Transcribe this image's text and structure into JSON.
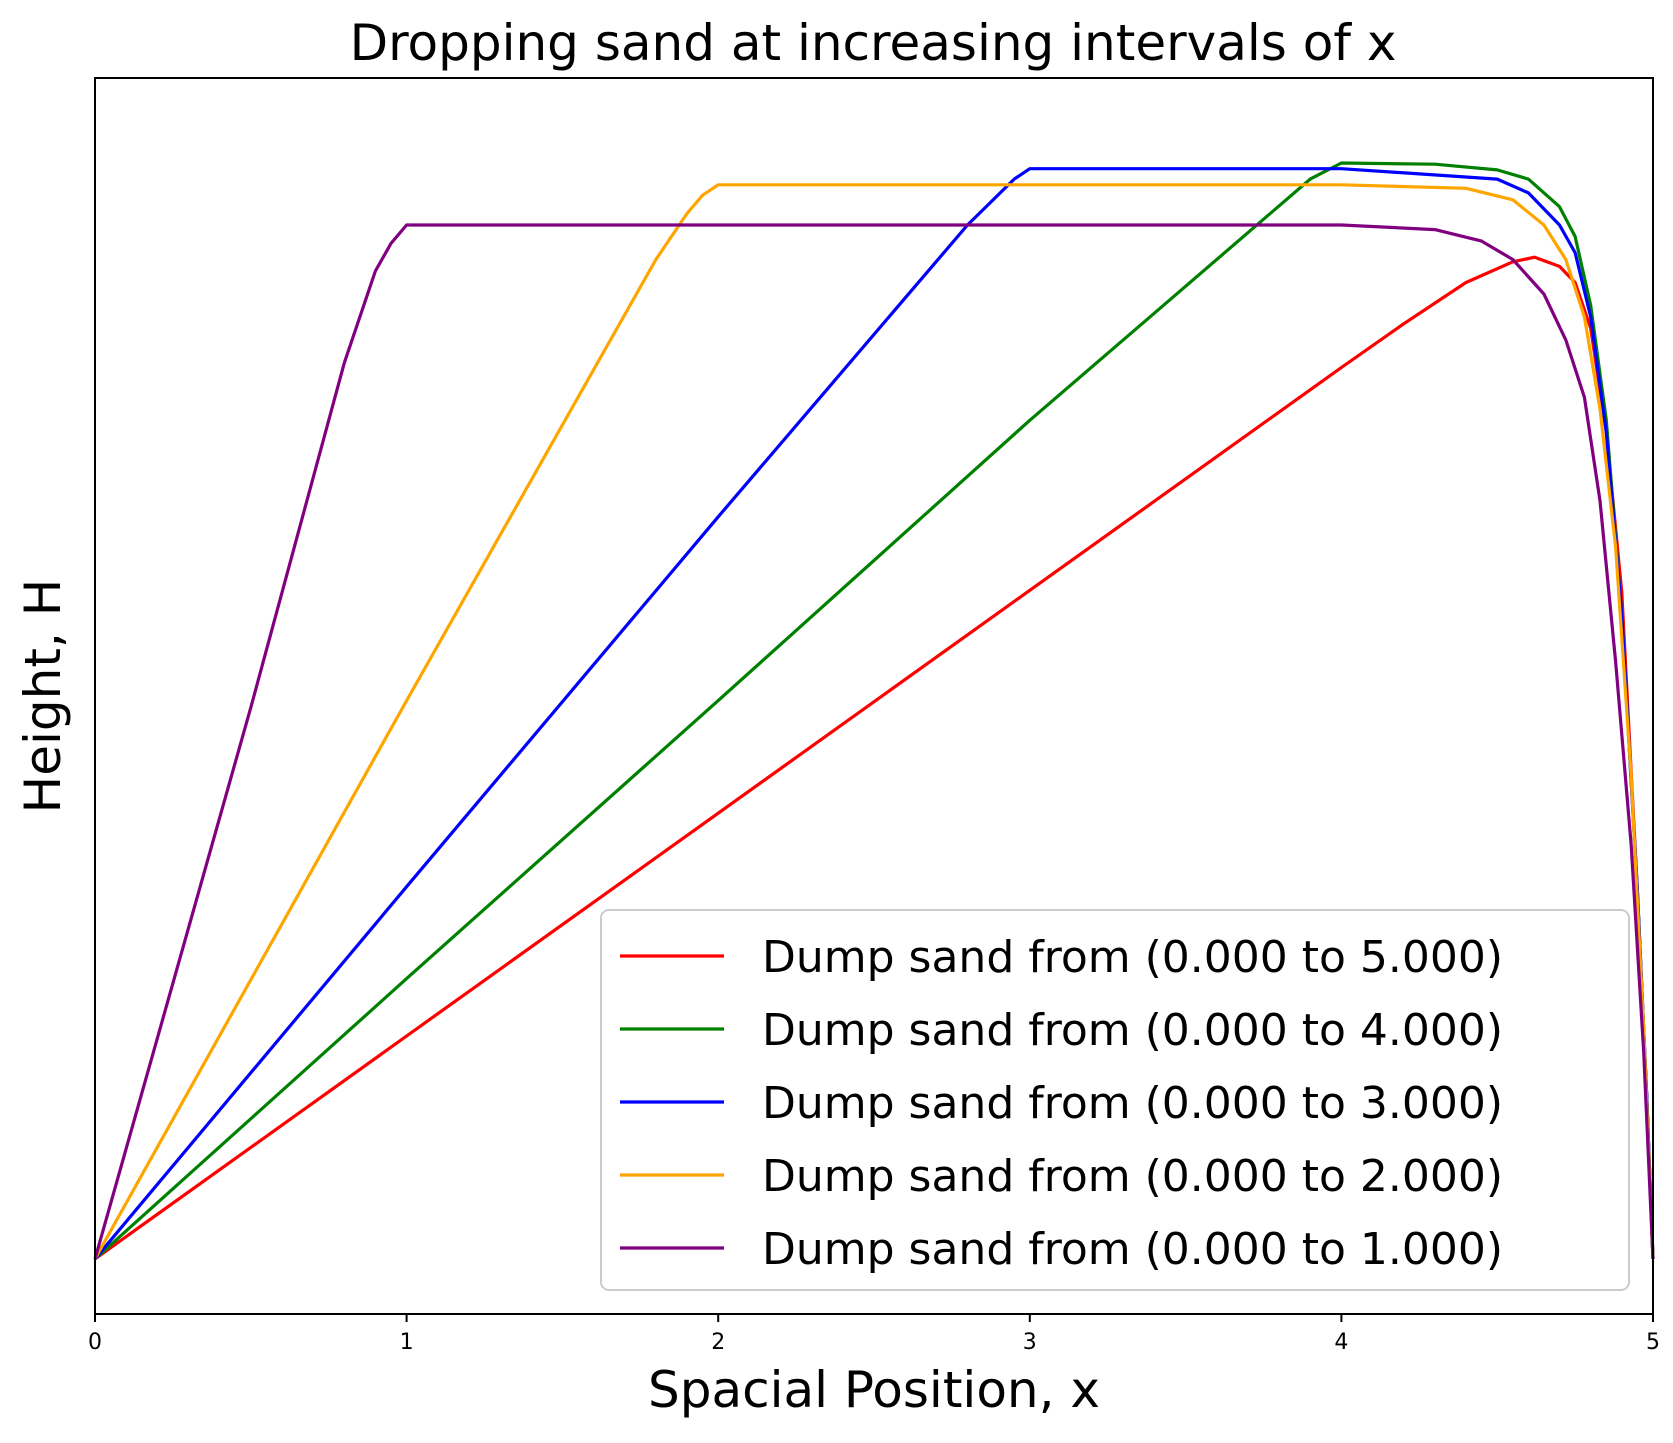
{
  "chart_data": {
    "type": "line",
    "title": "Dropping sand at increasing intervals of x",
    "xlabel": "Spacial Position, x",
    "ylabel": "Height, H",
    "xlim": [
      0,
      5
    ],
    "ylim": [
      -0.24,
      5.14
    ],
    "xticks": [
      "0",
      "1",
      "2",
      "3",
      "4",
      "5"
    ],
    "yticks_shown": false,
    "grid": false,
    "legend_position": "lower-right",
    "series": [
      {
        "name": "Dump sand from (0.000 to 5.000)",
        "color": "#ff0000",
        "points": [
          [
            0,
            0
          ],
          [
            1,
            0.97
          ],
          [
            2,
            1.94
          ],
          [
            3,
            2.91
          ],
          [
            4,
            3.88
          ],
          [
            4.2,
            4.07
          ],
          [
            4.4,
            4.25
          ],
          [
            4.55,
            4.34
          ],
          [
            4.62,
            4.36
          ],
          [
            4.7,
            4.32
          ],
          [
            4.75,
            4.25
          ],
          [
            4.8,
            4.05
          ],
          [
            4.85,
            3.6
          ],
          [
            4.9,
            2.9
          ],
          [
            4.95,
            1.6
          ],
          [
            4.98,
            0.7
          ],
          [
            5,
            0
          ]
        ]
      },
      {
        "name": "Dump sand from (0.000 to 4.000)",
        "color": "#008000",
        "points": [
          [
            0,
            0
          ],
          [
            1,
            1.22
          ],
          [
            2,
            2.43
          ],
          [
            3,
            3.65
          ],
          [
            3.9,
            4.7
          ],
          [
            4,
            4.77
          ],
          [
            4.3,
            4.765
          ],
          [
            4.5,
            4.74
          ],
          [
            4.6,
            4.7
          ],
          [
            4.7,
            4.58
          ],
          [
            4.75,
            4.45
          ],
          [
            4.8,
            4.15
          ],
          [
            4.85,
            3.65
          ],
          [
            4.9,
            2.8
          ],
          [
            4.95,
            1.6
          ],
          [
            4.98,
            0.7
          ],
          [
            5,
            0
          ]
        ]
      },
      {
        "name": "Dump sand from (0.000 to 3.000)",
        "color": "#0000ff",
        "points": [
          [
            0,
            0
          ],
          [
            1,
            1.62
          ],
          [
            2,
            3.23
          ],
          [
            2.8,
            4.5
          ],
          [
            2.95,
            4.7
          ],
          [
            3,
            4.745
          ],
          [
            4,
            4.745
          ],
          [
            4.5,
            4.7
          ],
          [
            4.6,
            4.64
          ],
          [
            4.7,
            4.5
          ],
          [
            4.75,
            4.38
          ],
          [
            4.8,
            4.1
          ],
          [
            4.85,
            3.6
          ],
          [
            4.9,
            2.8
          ],
          [
            4.95,
            1.6
          ],
          [
            4.98,
            0.7
          ],
          [
            5,
            0
          ]
        ]
      },
      {
        "name": "Dump sand from (0.000 to 2.000)",
        "color": "#ffa500",
        "points": [
          [
            0,
            0
          ],
          [
            1,
            2.43
          ],
          [
            1.8,
            4.35
          ],
          [
            1.9,
            4.55
          ],
          [
            1.95,
            4.63
          ],
          [
            2,
            4.675
          ],
          [
            4,
            4.675
          ],
          [
            4.4,
            4.66
          ],
          [
            4.55,
            4.61
          ],
          [
            4.65,
            4.5
          ],
          [
            4.72,
            4.35
          ],
          [
            4.78,
            4.1
          ],
          [
            4.83,
            3.7
          ],
          [
            4.88,
            3.1
          ],
          [
            4.93,
            2.1
          ],
          [
            4.97,
            1.0
          ],
          [
            5,
            0
          ]
        ]
      },
      {
        "name": "Dump sand from (0.000 to 1.000)",
        "color": "#800080",
        "points": [
          [
            0,
            0
          ],
          [
            0.5,
            2.4
          ],
          [
            0.8,
            3.9
          ],
          [
            0.9,
            4.3
          ],
          [
            0.95,
            4.42
          ],
          [
            1,
            4.5
          ],
          [
            4,
            4.5
          ],
          [
            4.3,
            4.48
          ],
          [
            4.45,
            4.43
          ],
          [
            4.55,
            4.35
          ],
          [
            4.65,
            4.2
          ],
          [
            4.72,
            4.0
          ],
          [
            4.78,
            3.75
          ],
          [
            4.83,
            3.3
          ],
          [
            4.88,
            2.6
          ],
          [
            4.93,
            1.8
          ],
          [
            4.97,
            0.9
          ],
          [
            5,
            0
          ]
        ]
      }
    ]
  }
}
